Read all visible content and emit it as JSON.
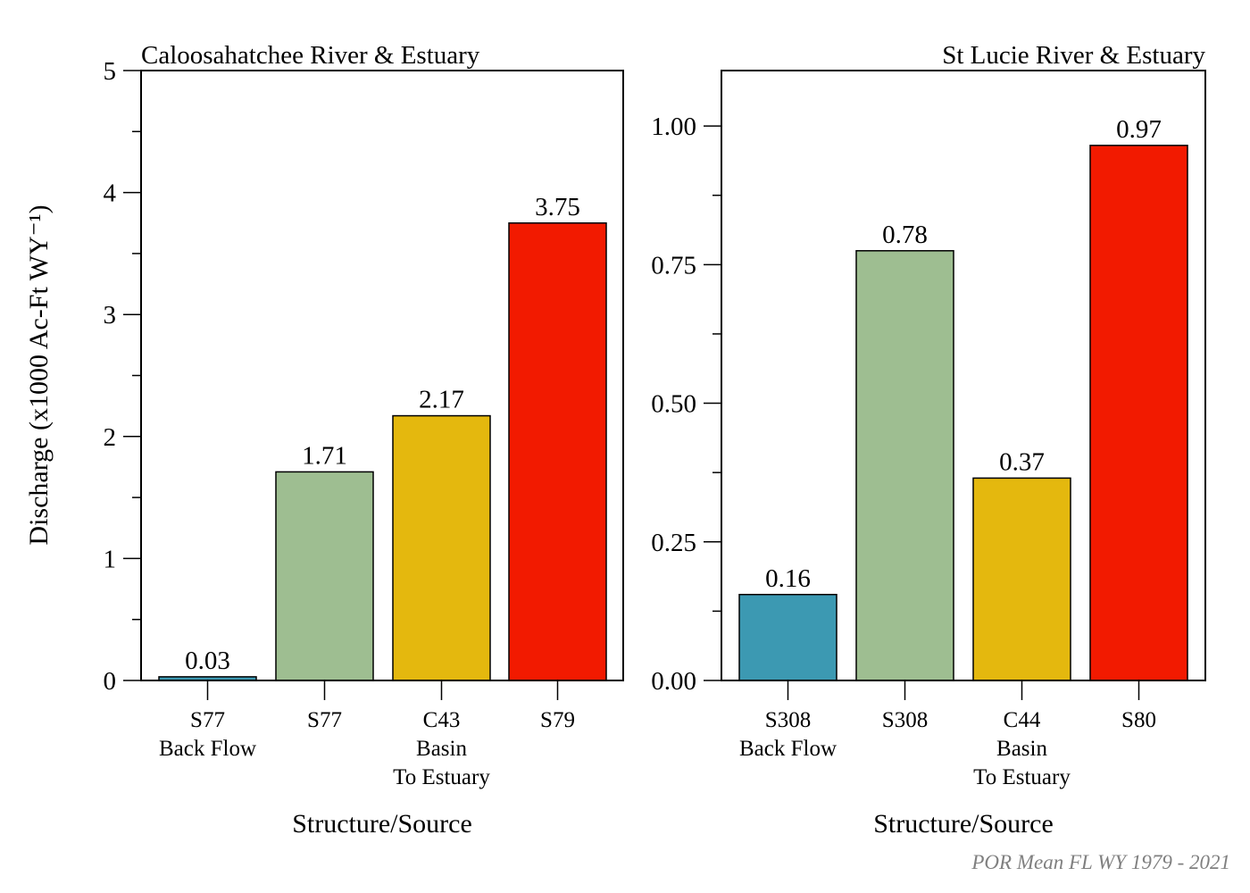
{
  "figure": {
    "ylabel": "Discharge (x1000 Ac-Ft WY⁻¹)",
    "footnote": "POR Mean FL WY 1979 - 2021"
  },
  "chart_data": [
    {
      "type": "bar",
      "title": "Caloosahatchee River & Estuary",
      "title_align": "left",
      "xlabel": "Structure/Source",
      "ylabel": "Discharge (x1000 Ac-Ft WY⁻¹)",
      "ylim": [
        0,
        5
      ],
      "yticks_major": [
        0,
        1,
        2,
        3,
        4,
        5
      ],
      "ytick_labels": [
        "0",
        "1",
        "2",
        "3",
        "4",
        "5"
      ],
      "yticks_minor": [
        0.5,
        1.5,
        2.5,
        3.5,
        4.5
      ],
      "grid": false,
      "categories": [
        [
          "S77",
          "Back Flow"
        ],
        [
          "S77"
        ],
        [
          "C43",
          "Basin",
          "To Estuary"
        ],
        [
          "S79"
        ]
      ],
      "values": [
        0.03,
        1.71,
        2.17,
        3.75
      ],
      "value_labels": [
        "0.03",
        "1.71",
        "2.17",
        "3.75"
      ],
      "colors": [
        "#3C99B2",
        "#9EBE91",
        "#E4B80E",
        "#F21A00"
      ]
    },
    {
      "type": "bar",
      "title": "St Lucie River & Estuary",
      "title_align": "right",
      "xlabel": "Structure/Source",
      "ylim": [
        0,
        1.1
      ],
      "yticks_major": [
        0,
        0.25,
        0.5,
        0.75,
        1.0
      ],
      "ytick_labels": [
        "0.00",
        "0.25",
        "0.50",
        "0.75",
        "1.00"
      ],
      "yticks_minor": [
        0.125,
        0.375,
        0.625,
        0.875
      ],
      "grid": false,
      "categories": [
        [
          "S308",
          "Back Flow"
        ],
        [
          "S308"
        ],
        [
          "C44",
          "Basin",
          "To Estuary"
        ],
        [
          "S80"
        ]
      ],
      "values": [
        0.155,
        0.775,
        0.365,
        0.965
      ],
      "value_labels": [
        "0.16",
        "0.78",
        "0.37",
        "0.97"
      ],
      "colors": [
        "#3C99B2",
        "#9EBE91",
        "#E4B80E",
        "#F21A00"
      ]
    }
  ]
}
